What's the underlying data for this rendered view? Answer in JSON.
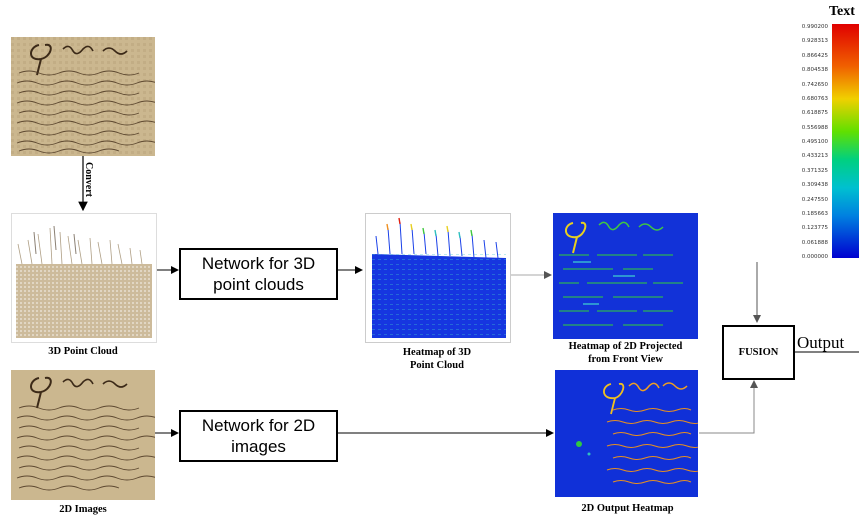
{
  "labels": {
    "convert": "Convert",
    "point_cloud": "3D Point Cloud",
    "images_2d": "2D Images",
    "heatmap_3d": [
      "Heatmap of 3D",
      "Point Cloud"
    ],
    "heatmap_projected": [
      "Heatmap of 2D Projected",
      "from Front View"
    ],
    "heatmap_2d_output": "2D Output Heatmap",
    "net_3d": [
      "Network for 3D",
      "point clouds"
    ],
    "net_2d": [
      "Network for 2D",
      "images"
    ],
    "fusion": "FUSION",
    "output": "Output",
    "colorbar_title": "Text"
  },
  "colorbar_ticks": [
    "0.990200",
    "0.928313",
    "0.866425",
    "0.804538",
    "0.742650",
    "0.680763",
    "0.618875",
    "0.556988",
    "0.495100",
    "0.433213",
    "0.371325",
    "0.309438",
    "0.247550",
    "0.185663",
    "0.123775",
    "0.061888",
    "0.000000"
  ],
  "colors": {
    "parchment": "#c9b48a",
    "ink": "#5a4028",
    "heat_blue": "#1030d8",
    "heat_green": "#30c840",
    "heat_yellow": "#f0e020",
    "heat_red": "#e02010"
  }
}
